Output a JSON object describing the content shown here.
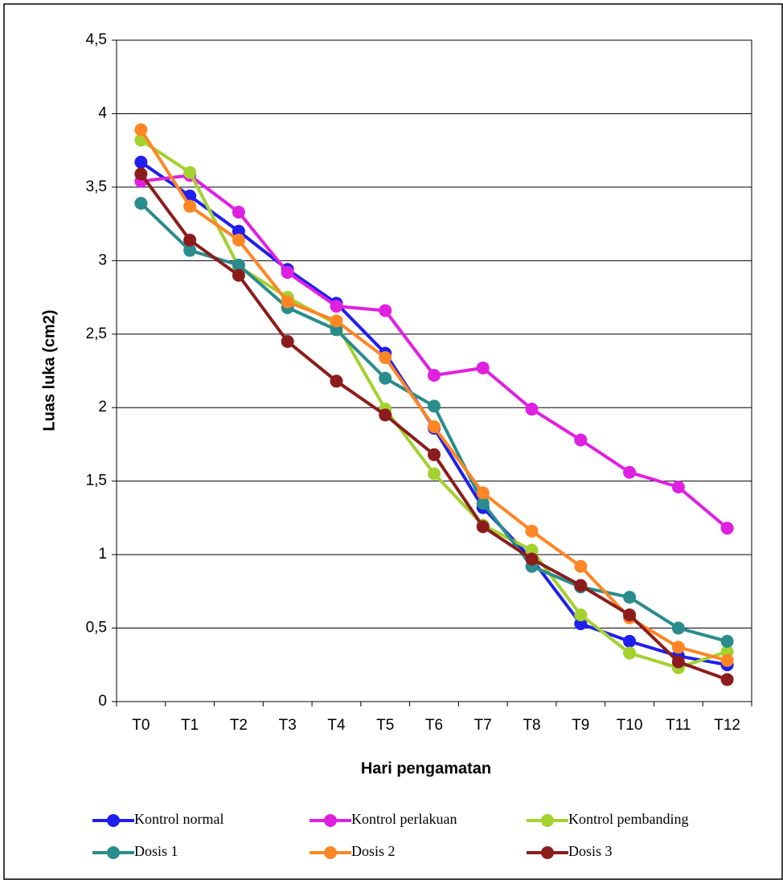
{
  "chart_data": {
    "type": "line",
    "x_label": "Hari pengamatan",
    "y_label": "Luas luka (cm2)",
    "categories": [
      "T0",
      "T1",
      "T2",
      "T3",
      "T4",
      "T5",
      "T6",
      "T7",
      "T8",
      "T9",
      "T10",
      "T11",
      "T12"
    ],
    "ylim": [
      0,
      4.5
    ],
    "yticks": [
      0,
      {
        "value": 0.5,
        "label": "0,5"
      },
      1,
      {
        "value": 1.5,
        "label": "1,5"
      },
      2,
      {
        "value": 2.5,
        "label": "2,5"
      },
      3,
      {
        "value": 3.5,
        "label": "3,5"
      },
      4,
      {
        "value": 4.5,
        "label": "4,5"
      }
    ],
    "grid": true,
    "legend": "bottom",
    "series": [
      {
        "name": "Kontrol normal",
        "color": "#1f1fef",
        "values": [
          3.67,
          3.44,
          3.2,
          2.94,
          2.71,
          2.37,
          1.86,
          1.32,
          0.97,
          0.53,
          0.41,
          0.31,
          0.25
        ]
      },
      {
        "name": "Kontrol perlakuan",
        "color": "#e020e0",
        "values": [
          3.54,
          3.58,
          3.33,
          2.92,
          2.69,
          2.66,
          2.22,
          2.27,
          1.99,
          1.78,
          1.56,
          1.46,
          1.18
        ]
      },
      {
        "name": "Kontrol pembanding",
        "color": "#a3d12f",
        "values": [
          3.82,
          3.6,
          2.96,
          2.75,
          2.57,
          1.99,
          1.55,
          1.2,
          1.03,
          0.59,
          0.33,
          0.23,
          0.34
        ]
      },
      {
        "name": "Dosis 1",
        "color": "#2a8c8c",
        "values": [
          3.39,
          3.07,
          2.97,
          2.68,
          2.53,
          2.2,
          2.01,
          1.35,
          0.92,
          0.78,
          0.71,
          0.5,
          0.41
        ]
      },
      {
        "name": "Dosis 2",
        "color": "#ff8624",
        "values": [
          3.89,
          3.37,
          3.14,
          2.72,
          2.59,
          2.34,
          1.87,
          1.42,
          1.16,
          0.92,
          0.57,
          0.37,
          0.28
        ]
      },
      {
        "name": "Dosis 3",
        "color": "#8c1c1c",
        "values": [
          3.59,
          3.14,
          2.9,
          2.45,
          2.18,
          1.95,
          1.68,
          1.19,
          0.97,
          0.79,
          0.59,
          0.27,
          0.15
        ]
      }
    ]
  }
}
